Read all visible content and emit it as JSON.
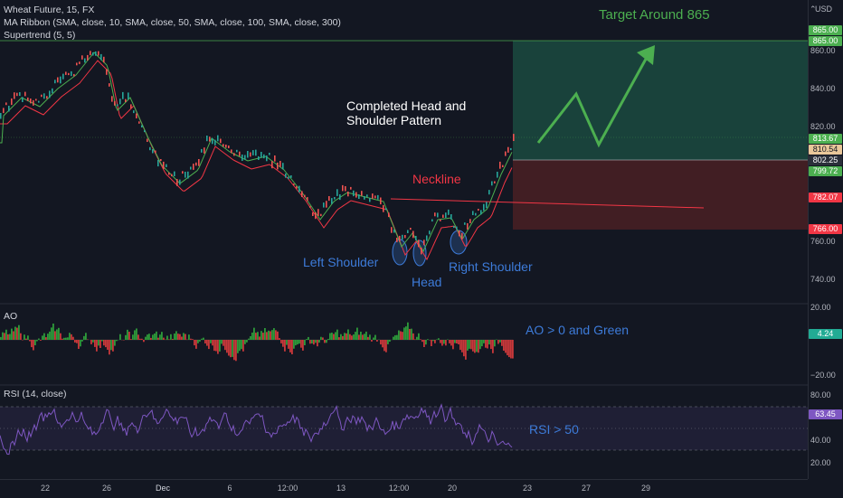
{
  "legend": {
    "symbol": "Wheat Future, 15, FX",
    "ma_ribbon": "MA Ribbon (SMA, close, 10, SMA, close, 50, SMA, close, 100, SMA, close, 300)",
    "supertrend": "Supertrend (5, 5)",
    "ao_label": "AO",
    "rsi_label": "RSI (14, close)"
  },
  "currency": "USD",
  "annotations": {
    "target": "Target Around 865",
    "pattern_line1": "Completed Head and",
    "pattern_line2": "Shoulder Pattern",
    "neckline": "Neckline",
    "left_shoulder": "Left Shoulder",
    "head": "Head",
    "right_shoulder": "Right Shoulder",
    "ao_note": "AO > 0 and Green",
    "rsi_note": "RSI > 50"
  },
  "price_axis": {
    "ticks": [
      "860.00",
      "840.00",
      "820.00",
      "780.00",
      "760.00",
      "740.00"
    ],
    "tags": [
      {
        "label": "865.00",
        "color": "#4caf50"
      },
      {
        "label": "865.00",
        "color": "#4caf50"
      },
      {
        "label": "813.67",
        "color": "#4caf50"
      },
      {
        "label": "810.54",
        "color": "#e9c79a"
      },
      {
        "label": "802.25",
        "color": "#2a2e39"
      },
      {
        "label": "799.72",
        "color": "#4caf50"
      },
      {
        "label": "782.07",
        "color": "#f23645"
      },
      {
        "label": "766.00",
        "color": "#f23645"
      }
    ]
  },
  "ao_axis": {
    "ticks": [
      "20.00",
      "−20.00"
    ],
    "value": "4.24",
    "value_color": "#22ab94"
  },
  "rsi_axis": {
    "ticks": [
      "80.00",
      "60.00",
      "40.00",
      "20.00"
    ],
    "value": "63.45",
    "value_color": "#7e57c2"
  },
  "time_axis": [
    "22",
    "26",
    "Dec",
    "6",
    "12:00",
    "13",
    "12:00",
    "20",
    "23",
    "27",
    "29"
  ],
  "colors": {
    "up": "#26a69a",
    "down": "#ef5350",
    "target_zone": "#1b4a3f",
    "stop_zone": "#4a2023",
    "annotation_green": "#4caf50",
    "annotation_blue": "#3d7bd9",
    "neckline": "#f23645",
    "rsi": "#7e57c2"
  }
}
